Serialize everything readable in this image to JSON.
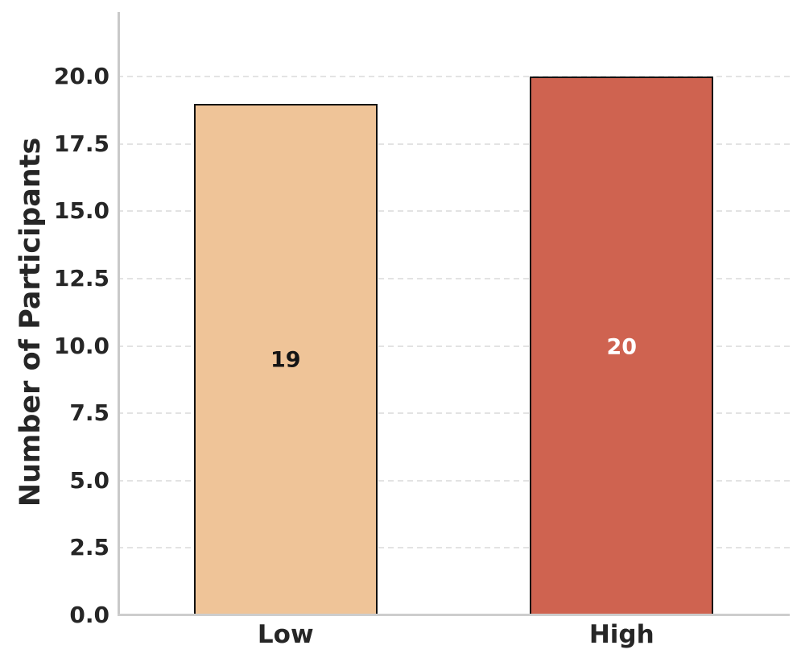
{
  "chart_data": {
    "type": "bar",
    "title": "",
    "categories": [
      "Low",
      "High"
    ],
    "values": [
      19,
      20
    ],
    "bar_value_labels": [
      "19",
      "20"
    ],
    "bar_colors": [
      "#efc498",
      "#cf6350"
    ],
    "bar_label_colors": [
      "#151515",
      "#ffffff"
    ],
    "bar_edge_color": "#111111",
    "xlabel": "",
    "ylabel": "Number of Participants",
    "yticks": [
      0.0,
      2.5,
      5.0,
      7.5,
      10.0,
      12.5,
      15.0,
      17.5,
      20.0
    ],
    "ytick_labels": [
      "0.0",
      "2.5",
      "5.0",
      "7.5",
      "10.0",
      "12.5",
      "15.0",
      "17.5",
      "20.0"
    ],
    "ylim": [
      0,
      22.4
    ],
    "grid": "horizontal-dashed",
    "grid_color": "#e3e3e3",
    "spine_color": "#c9c9c9",
    "axis_text_color": "#262626",
    "background": "#ffffff",
    "legend": "none"
  }
}
